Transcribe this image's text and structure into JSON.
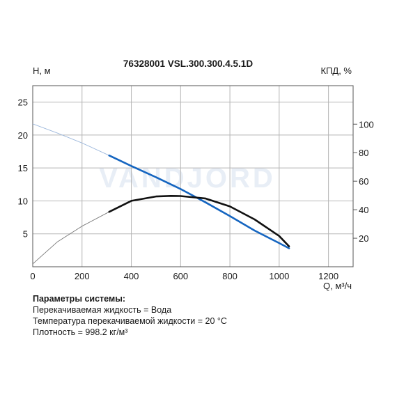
{
  "chart_data": {
    "type": "line",
    "title": "76328001 VSL.300.300.4.5.1D",
    "ylabel": "H, м",
    "ylabel_right": "КПД, %",
    "xlabel": "Q, м³/ч",
    "watermark": "VANDJORD",
    "xlim": [
      0,
      1300
    ],
    "ylim": [
      0,
      27.5
    ],
    "y2lim": [
      0,
      127
    ],
    "x_ticks": [
      "0",
      "200",
      "400",
      "600",
      "800",
      "1000",
      "1200"
    ],
    "y_ticks": [
      "5",
      "10",
      "15",
      "20",
      "25"
    ],
    "y2_ticks": [
      "20",
      "40",
      "60",
      "80",
      "100"
    ],
    "grid": true,
    "series": [
      {
        "color": "#1565c0",
        "axis": "left",
        "operating_range": [
          310,
          1040
        ],
        "x": [
          0,
          100,
          200,
          310,
          400,
          500,
          600,
          700,
          800,
          900,
          1000,
          1040
        ],
        "y": [
          21.7,
          20.3,
          18.8,
          16.9,
          15.3,
          13.6,
          11.8,
          9.8,
          7.7,
          5.5,
          3.6,
          2.8
        ]
      },
      {
        "color": "#111111",
        "axis": "right",
        "operating_range": [
          310,
          1040
        ],
        "x": [
          0,
          100,
          200,
          310,
          400,
          500,
          560,
          600,
          700,
          800,
          900,
          1000,
          1040
        ],
        "y": [
          2,
          17.5,
          28.5,
          38.5,
          46.2,
          49.3,
          49.7,
          49.6,
          47.9,
          42.3,
          33.2,
          21.6,
          14.3
        ]
      }
    ]
  },
  "system_params": {
    "heading": "Параметры системы:",
    "lines": [
      "Перекачиваемая жидкость = Вода",
      "Температура перекачиваемой жидкости = 20 °C",
      "Плотность = 998.2 кг/м³"
    ]
  }
}
